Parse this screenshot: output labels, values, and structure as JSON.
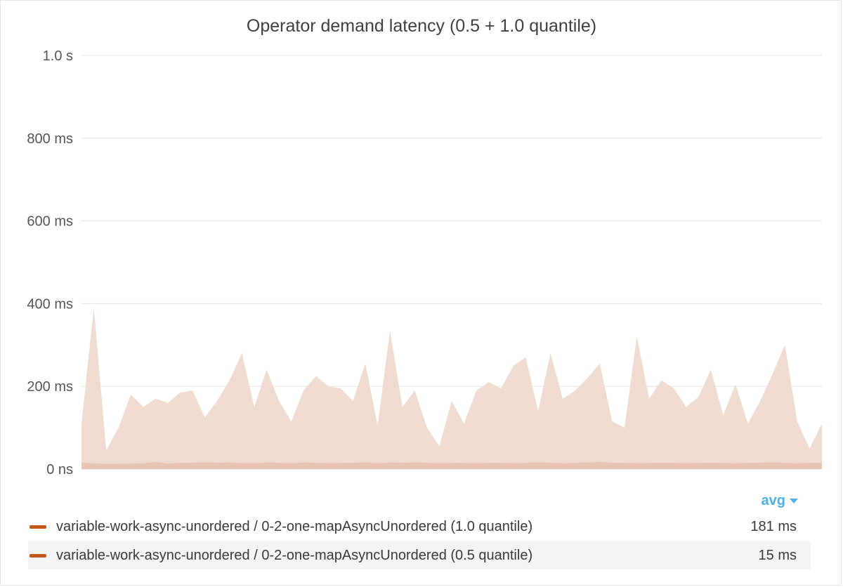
{
  "panel": {
    "title": "Operator demand latency (0.5 + 1.0 quantile)"
  },
  "legend": {
    "sort_label": "avg",
    "items": [
      {
        "name": "variable-work-async-unordered / 0-2-one-mapAsyncUnordered (1.0 quantile)",
        "value": "181 ms",
        "color": "#c2581c"
      },
      {
        "name": "variable-work-async-unordered / 0-2-one-mapAsyncUnordered (0.5 quantile)",
        "value": "15 ms",
        "color": "#c2581c"
      }
    ]
  },
  "chart_data": {
    "type": "area",
    "title": "Operator demand latency (0.5 + 1.0 quantile)",
    "ylim": [
      0,
      1000
    ],
    "yunit": "ms",
    "yticks": [
      {
        "value": 0,
        "label": "0 ns"
      },
      {
        "value": 200,
        "label": "200 ms"
      },
      {
        "value": 400,
        "label": "400 ms"
      },
      {
        "value": 600,
        "label": "600 ms"
      },
      {
        "value": 800,
        "label": "800 ms"
      },
      {
        "value": 1000,
        "label": "1.0 s"
      }
    ],
    "grid": true,
    "fill_color": "#f0dbd0",
    "fill_color_inner": "#e8c4b2",
    "series": [
      {
        "name": "variable-work-async-unordered / 0-2-one-mapAsyncUnordered (1.0 quantile)",
        "values": [
          110,
          390,
          45,
          100,
          180,
          150,
          170,
          160,
          185,
          190,
          125,
          165,
          215,
          280,
          150,
          240,
          165,
          115,
          190,
          225,
          200,
          195,
          165,
          255,
          105,
          335,
          150,
          190,
          100,
          55,
          165,
          110,
          190,
          210,
          195,
          250,
          270,
          140,
          280,
          170,
          190,
          220,
          255,
          115,
          100,
          320,
          170,
          215,
          195,
          150,
          175,
          240,
          130,
          205,
          110,
          165,
          230,
          300,
          115,
          50,
          110
        ]
      },
      {
        "name": "variable-work-async-unordered / 0-2-one-mapAsyncUnordered (0.5 quantile)",
        "values": [
          15,
          14,
          12,
          13,
          13,
          14,
          17,
          13,
          15,
          15,
          16,
          15,
          16,
          14,
          14,
          16,
          15,
          14,
          16,
          15,
          14,
          15,
          15,
          16,
          14,
          16,
          15,
          16,
          15,
          14,
          15,
          15,
          14,
          15,
          15,
          14,
          15,
          16,
          15,
          14,
          15,
          16,
          17,
          15,
          15,
          14,
          15,
          15,
          15,
          14,
          15,
          15,
          15,
          14,
          15,
          15,
          16,
          15,
          14,
          15,
          15
        ]
      }
    ]
  }
}
